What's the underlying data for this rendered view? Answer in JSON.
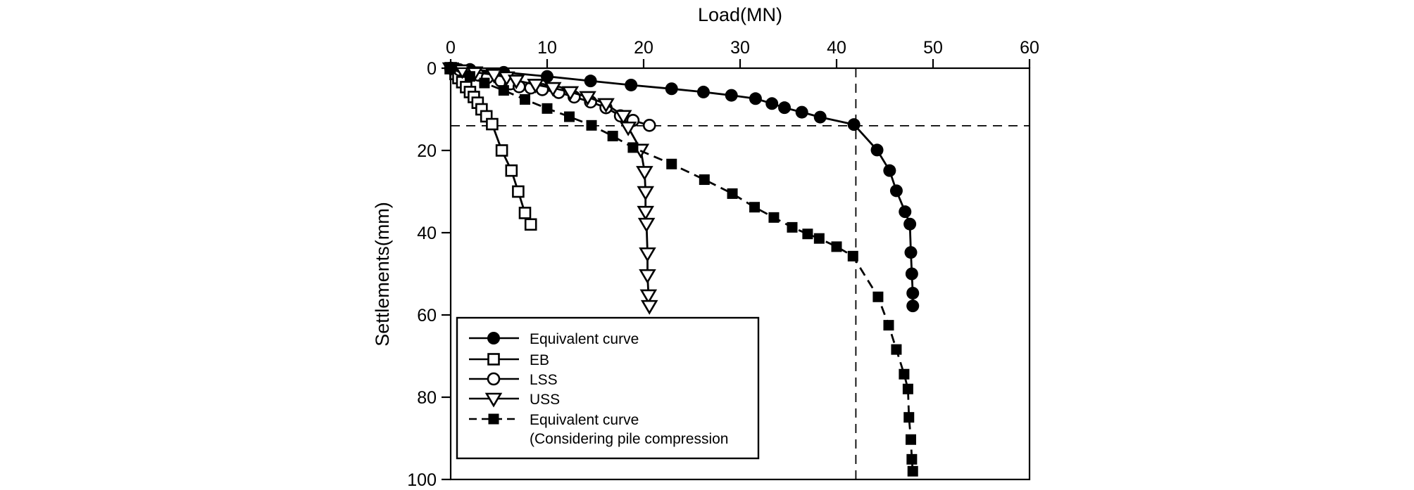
{
  "chart_data": {
    "type": "line",
    "title": "Load(MN)",
    "xlabel": "Load(MN)",
    "ylabel": "Settlements(mm)",
    "x_axis_position": "top",
    "y_axis_direction": "inverted-downward",
    "grid": false,
    "xlim": [
      0,
      60
    ],
    "ylim": [
      0,
      100
    ],
    "xticks": {
      "values": [
        0,
        10,
        20,
        30,
        40,
        50,
        60
      ],
      "labels": [
        "0",
        "10",
        "20",
        "30",
        "40",
        "50",
        "60"
      ]
    },
    "yticks": {
      "values": [
        0,
        20,
        40,
        60,
        80,
        100
      ],
      "labels": [
        "0",
        "20",
        "40",
        "60",
        "80",
        "100"
      ]
    },
    "colors": {
      "foreground": "#000000",
      "background": "#ffffff"
    },
    "reference_lines": [
      {
        "orientation": "vertical",
        "load_MN": 42,
        "style": "dashed"
      },
      {
        "orientation": "horizontal",
        "settlement_mm": 14,
        "style": "dashed"
      }
    ],
    "legend": {
      "position": "inside-lower-left",
      "border": true
    },
    "series": [
      {
        "name": "Equivalent curve",
        "legend_label": "Equivalent curve",
        "legend_label_line2": "",
        "marker": "circle-filled",
        "line": "solid",
        "points": [
          [
            0,
            0
          ],
          [
            2,
            0.3
          ],
          [
            5.5,
            1
          ],
          [
            10,
            2
          ],
          [
            14.5,
            3.1
          ],
          [
            18.7,
            4.1
          ],
          [
            22.9,
            5
          ],
          [
            26.2,
            5.8
          ],
          [
            29.1,
            6.6
          ],
          [
            31.6,
            7.4
          ],
          [
            33.3,
            8.6
          ],
          [
            34.6,
            9.6
          ],
          [
            36.4,
            10.7
          ],
          [
            38.3,
            11.9
          ],
          [
            41.8,
            13.7
          ],
          [
            44.2,
            19.9
          ],
          [
            45.5,
            24.9
          ],
          [
            46.2,
            29.8
          ],
          [
            47.1,
            34.9
          ],
          [
            47.6,
            37.9
          ],
          [
            47.7,
            44.8
          ],
          [
            47.8,
            50
          ],
          [
            47.9,
            54.7
          ],
          [
            47.9,
            57.8
          ]
        ]
      },
      {
        "name": "EB",
        "legend_label": "EB",
        "legend_label_line2": "",
        "marker": "square-open",
        "line": "solid",
        "points": [
          [
            0,
            0
          ],
          [
            0.5,
            1.4
          ],
          [
            0.8,
            2.4
          ],
          [
            1.2,
            3.4
          ],
          [
            1.6,
            4.6
          ],
          [
            2,
            5.8
          ],
          [
            2.4,
            7
          ],
          [
            2.8,
            8.4
          ],
          [
            3.2,
            10
          ],
          [
            3.7,
            11.7
          ],
          [
            4.3,
            13.6
          ],
          [
            5.3,
            20
          ],
          [
            6.3,
            24.9
          ],
          [
            7,
            30
          ],
          [
            7.7,
            35.2
          ],
          [
            8.3,
            38
          ]
        ]
      },
      {
        "name": "LSS",
        "legend_label": "LSS",
        "legend_label_line2": "",
        "marker": "circle-open",
        "line": "solid",
        "points": [
          [
            0,
            0
          ],
          [
            0.9,
            0.4
          ],
          [
            1.9,
            1
          ],
          [
            2.9,
            1.7
          ],
          [
            3.8,
            2.3
          ],
          [
            5.2,
            3.1
          ],
          [
            6.2,
            3.8
          ],
          [
            7.1,
            4.5
          ],
          [
            8.3,
            4.8
          ],
          [
            9.5,
            5.2
          ],
          [
            11.2,
            5.9
          ],
          [
            12.8,
            7
          ],
          [
            14.5,
            8.2
          ],
          [
            16.1,
            9.6
          ],
          [
            17.6,
            11.6
          ],
          [
            18.9,
            12.7
          ],
          [
            20.6,
            13.9
          ]
        ]
      },
      {
        "name": "USS",
        "legend_label": "USS",
        "legend_label_line2": "",
        "marker": "triangle-down-open",
        "line": "solid",
        "points": [
          [
            0,
            0
          ],
          [
            1.2,
            0.5
          ],
          [
            2.5,
            1
          ],
          [
            4.5,
            1.6
          ],
          [
            5.8,
            2.2
          ],
          [
            6.8,
            3
          ],
          [
            8.8,
            4
          ],
          [
            10.6,
            4.8
          ],
          [
            12.4,
            5.8
          ],
          [
            14.2,
            7
          ],
          [
            16.1,
            8.7
          ],
          [
            17.9,
            11.6
          ],
          [
            18.4,
            14.4
          ],
          [
            19.7,
            19.8
          ],
          [
            20.1,
            25.2
          ],
          [
            20.2,
            30.1
          ],
          [
            20.2,
            34.9
          ],
          [
            20.3,
            37.8
          ],
          [
            20.4,
            45
          ],
          [
            20.4,
            50.3
          ],
          [
            20.5,
            55.2
          ],
          [
            20.6,
            57.8
          ]
        ]
      },
      {
        "name": "Equivalent curve (Considering pile compression",
        "legend_label": "Equivalent curve",
        "legend_label_line2": "(Considering pile compression",
        "marker": "square-filled",
        "line": "dashed",
        "points": [
          [
            0,
            0
          ],
          [
            2,
            2
          ],
          [
            3.5,
            3.6
          ],
          [
            5.5,
            5.4
          ],
          [
            7.7,
            7.6
          ],
          [
            10,
            9.8
          ],
          [
            12.3,
            11.8
          ],
          [
            14.6,
            13.9
          ],
          [
            16.8,
            16.5
          ],
          [
            18.9,
            19.3
          ],
          [
            22.9,
            23.3
          ],
          [
            26.3,
            27.1
          ],
          [
            29.2,
            30.5
          ],
          [
            31.5,
            33.8
          ],
          [
            33.5,
            36.3
          ],
          [
            35.4,
            38.7
          ],
          [
            37,
            40.3
          ],
          [
            38.2,
            41.4
          ],
          [
            40,
            43.4
          ],
          [
            41.7,
            45.7
          ],
          [
            44.3,
            55.6
          ],
          [
            45.4,
            62.5
          ],
          [
            46.2,
            68.4
          ],
          [
            47,
            74.4
          ],
          [
            47.4,
            78
          ],
          [
            47.5,
            84.9
          ],
          [
            47.7,
            90.3
          ],
          [
            47.8,
            95.1
          ],
          [
            47.9,
            98
          ]
        ]
      }
    ]
  }
}
